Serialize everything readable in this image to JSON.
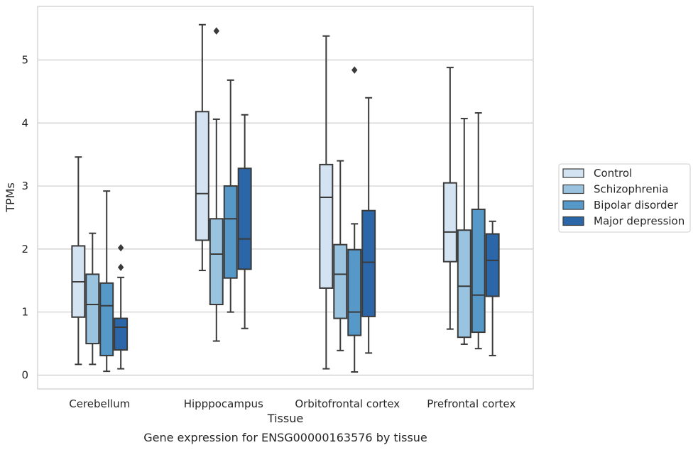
{
  "chart_data": {
    "type": "box",
    "caption": "Gene expression for ENSG00000163576 by tissue",
    "xlabel": "Tissue",
    "ylabel": "TPMs",
    "ylim": [
      -0.22,
      5.85
    ],
    "yticks": [
      0,
      1,
      2,
      3,
      4,
      5
    ],
    "grid": "horizontal",
    "legend_position": "right",
    "categories": [
      "Cerebellum",
      "Hipppocampus",
      "Orbitofrontal cortex",
      "Prefrontal cortex"
    ],
    "series": [
      {
        "name": "Control",
        "color": "#d3e3f2",
        "boxes": [
          {
            "whislo": 0.17,
            "q1": 0.92,
            "med": 1.48,
            "q3": 2.05,
            "whishi": 3.46,
            "fliers": []
          },
          {
            "whislo": 1.66,
            "q1": 2.14,
            "med": 2.88,
            "q3": 4.18,
            "whishi": 5.56,
            "fliers": []
          },
          {
            "whislo": 0.1,
            "q1": 1.38,
            "med": 2.82,
            "q3": 3.34,
            "whishi": 5.38,
            "fliers": []
          },
          {
            "whislo": 0.73,
            "q1": 1.8,
            "med": 2.27,
            "q3": 3.05,
            "whishi": 4.88,
            "fliers": []
          }
        ]
      },
      {
        "name": "Schizophrenia",
        "color": "#9ac3df",
        "boxes": [
          {
            "whislo": 0.17,
            "q1": 0.5,
            "med": 1.12,
            "q3": 1.6,
            "whishi": 2.25,
            "fliers": []
          },
          {
            "whislo": 0.54,
            "q1": 1.12,
            "med": 1.92,
            "q3": 2.48,
            "whishi": 4.06,
            "fliers": [
              5.46
            ]
          },
          {
            "whislo": 0.39,
            "q1": 0.9,
            "med": 1.6,
            "q3": 2.07,
            "whishi": 3.4,
            "fliers": []
          },
          {
            "whislo": 0.49,
            "q1": 0.6,
            "med": 1.41,
            "q3": 2.3,
            "whishi": 4.07,
            "fliers": []
          }
        ]
      },
      {
        "name": "Bipolar disorder",
        "color": "#5698c8",
        "boxes": [
          {
            "whislo": 0.06,
            "q1": 0.31,
            "med": 1.1,
            "q3": 1.46,
            "whishi": 2.92,
            "fliers": []
          },
          {
            "whislo": 1.0,
            "q1": 1.54,
            "med": 2.48,
            "q3": 3.0,
            "whishi": 4.68,
            "fliers": []
          },
          {
            "whislo": 0.05,
            "q1": 0.63,
            "med": 1.0,
            "q3": 1.99,
            "whishi": 2.4,
            "fliers": [
              4.84
            ]
          },
          {
            "whislo": 0.42,
            "q1": 0.68,
            "med": 1.27,
            "q3": 2.63,
            "whishi": 4.16,
            "fliers": []
          }
        ]
      },
      {
        "name": "Major depression",
        "color": "#2a66a8",
        "boxes": [
          {
            "whislo": 0.1,
            "q1": 0.4,
            "med": 0.76,
            "q3": 0.9,
            "whishi": 1.55,
            "fliers": [
              1.71,
              2.02
            ]
          },
          {
            "whislo": 0.74,
            "q1": 1.68,
            "med": 2.16,
            "q3": 3.28,
            "whishi": 4.13,
            "fliers": []
          },
          {
            "whislo": 0.35,
            "q1": 0.93,
            "med": 1.79,
            "q3": 2.61,
            "whishi": 4.4,
            "fliers": []
          },
          {
            "whislo": 0.31,
            "q1": 1.25,
            "med": 1.82,
            "q3": 2.24,
            "whishi": 2.44,
            "fliers": []
          }
        ]
      }
    ]
  }
}
